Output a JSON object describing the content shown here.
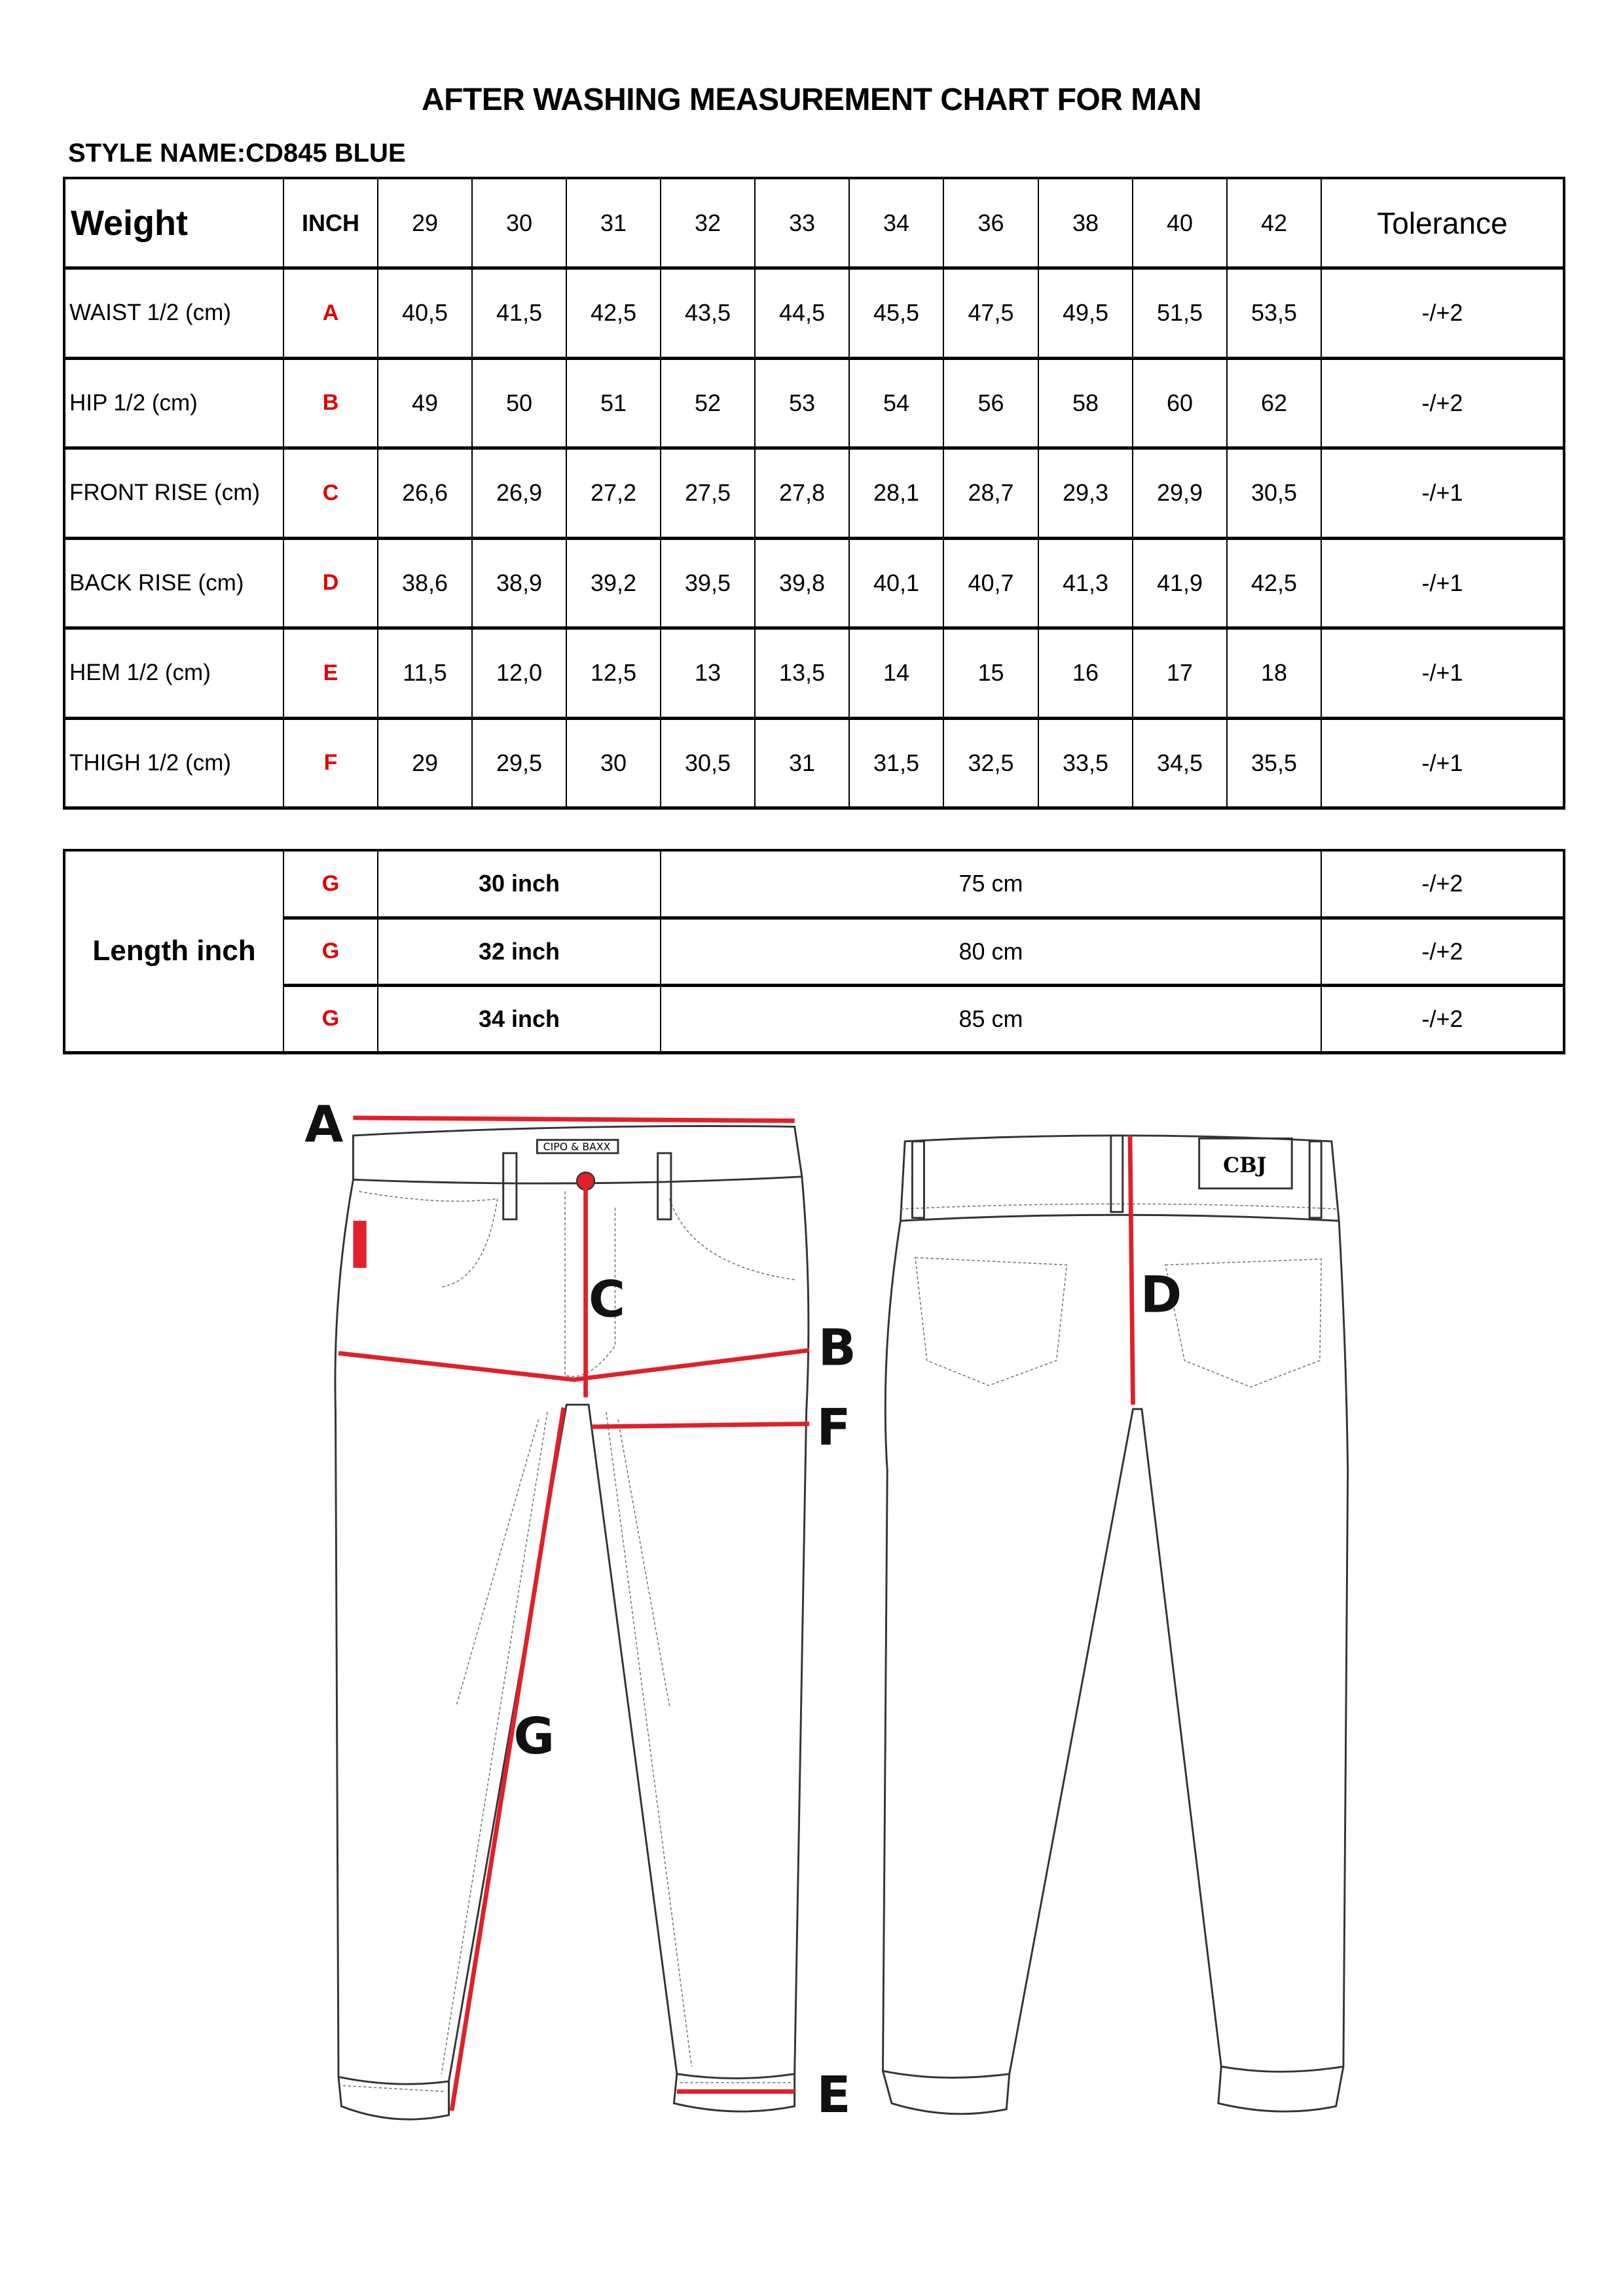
{
  "title": "AFTER WASHING MEASUREMENT CHART FOR MAN",
  "style_name": "STYLE NAME:CD845 BLUE",
  "colors": {
    "code": "#e00000",
    "arrow": "#e0202a"
  },
  "size_table": {
    "header": {
      "label": "Weight",
      "code": "INCH",
      "sizes": [
        "29",
        "30",
        "31",
        "32",
        "33",
        "34",
        "36",
        "38",
        "40",
        "42"
      ],
      "tolerance": "Tolerance"
    },
    "rows": [
      {
        "label": "WAIST 1/2 (cm)",
        "code": "A",
        "values": [
          "40,5",
          "41,5",
          "42,5",
          "43,5",
          "44,5",
          "45,5",
          "47,5",
          "49,5",
          "51,5",
          "53,5"
        ],
        "tolerance": "-/+2"
      },
      {
        "label": "HIP 1/2 (cm)",
        "code": "B",
        "values": [
          "49",
          "50",
          "51",
          "52",
          "53",
          "54",
          "56",
          "58",
          "60",
          "62"
        ],
        "tolerance": "-/+2"
      },
      {
        "label": "FRONT RISE (cm)",
        "code": "C",
        "values": [
          "26,6",
          "26,9",
          "27,2",
          "27,5",
          "27,8",
          "28,1",
          "28,7",
          "29,3",
          "29,9",
          "30,5"
        ],
        "tolerance": "-/+1"
      },
      {
        "label": "BACK RISE (cm)",
        "code": "D",
        "values": [
          "38,6",
          "38,9",
          "39,2",
          "39,5",
          "39,8",
          "40,1",
          "40,7",
          "41,3",
          "41,9",
          "42,5"
        ],
        "tolerance": "-/+1"
      },
      {
        "label": "HEM 1/2  (cm)",
        "code": "E",
        "values": [
          "11,5",
          "12,0",
          "12,5",
          "13",
          "13,5",
          "14",
          "15",
          "16",
          "17",
          "18"
        ],
        "tolerance": "-/+1"
      },
      {
        "label": "THIGH 1/2 (cm)",
        "code": "F",
        "values": [
          "29",
          "29,5",
          "30",
          "30,5",
          "31",
          "31,5",
          "32,5",
          "33,5",
          "34,5",
          "35,5"
        ],
        "tolerance": "-/+1"
      }
    ]
  },
  "length_table": {
    "label": "Length inch",
    "rows": [
      {
        "code": "G",
        "inch": "30 inch",
        "cm": "75 cm",
        "tolerance": "-/+2"
      },
      {
        "code": "G",
        "inch": "32 inch",
        "cm": "80 cm",
        "tolerance": "-/+2"
      },
      {
        "code": "G",
        "inch": "34 inch",
        "cm": "85 cm",
        "tolerance": "-/+2"
      }
    ]
  },
  "diagram": {
    "labels": {
      "a": "A",
      "b": "B",
      "c": "C",
      "d": "D",
      "e": "E",
      "f": "F",
      "g": "G"
    },
    "front_patch_logo": "CIPO & BAXX",
    "back_patch_logo": "CBJ"
  }
}
